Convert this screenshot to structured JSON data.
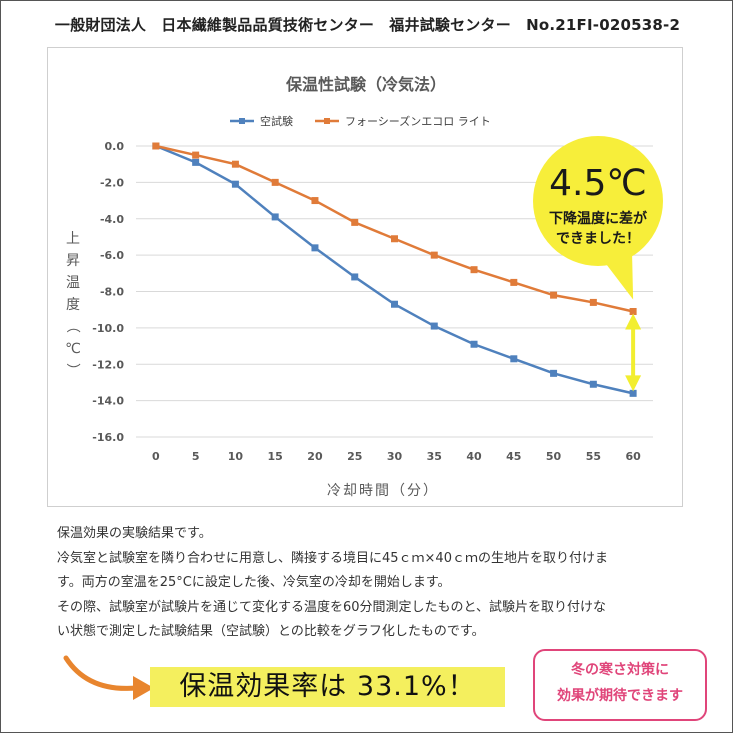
{
  "header": {
    "text": "一般財団法人　日本繊維製品品質技術センター　福井試験センター　No.21FI-020538-2"
  },
  "chart_data": {
    "type": "line",
    "title": "保温性試験（冷気法）",
    "xlabel": "冷却時間（分）",
    "ylabel": [
      "上",
      "昇",
      "温",
      "度",
      "（",
      "℃",
      "）"
    ],
    "x": [
      0,
      5,
      10,
      15,
      20,
      25,
      30,
      35,
      40,
      45,
      50,
      55,
      60
    ],
    "ylim": [
      -16,
      0
    ],
    "yticks": [
      "0.0",
      "-2.0",
      "-4.0",
      "-6.0",
      "-8.0",
      "-10.0",
      "-12.0",
      "-14.0",
      "-16.0"
    ],
    "ytick_values": [
      0,
      -2,
      -4,
      -6,
      -8,
      -10,
      -12,
      -14,
      -16
    ],
    "grid": true,
    "legend_position": "top",
    "series": [
      {
        "name": "空試験",
        "color": "#4f81bd",
        "values": [
          0,
          -0.9,
          -2.1,
          -3.9,
          -5.6,
          -7.2,
          -8.7,
          -9.9,
          -10.9,
          -11.7,
          -12.5,
          -13.1,
          -13.6
        ]
      },
      {
        "name": "フォーシーズンエコロ ライト",
        "color": "#e07b39",
        "values": [
          0,
          -0.5,
          -1.0,
          -2.0,
          -3.0,
          -4.2,
          -5.1,
          -6.0,
          -6.8,
          -7.5,
          -8.2,
          -8.6,
          -9.1
        ]
      }
    ],
    "annotation": {
      "big": "4.5℃",
      "line1": "下降温度に差が",
      "line2": "できました！",
      "bubble_color": "#f7ee3a",
      "arrow_color": "#f2ee2f"
    }
  },
  "description": [
    "保温効果の実験結果です。",
    "冷気室と試験室を隣り合わせに用意し、隣接する境目に45ｃｍ×40ｃｍの生地片を取り付けま",
    "す。両方の室温を25°Cに設定した後、冷気室の冷却を開始します。",
    "その際、試験室が試験片を通じて変化する温度を60分間測定したものと、試験片を取り付けな",
    "い状態で測定した試験結果（空試験）との比較をグラフ化したものです。"
  ],
  "efficiency": {
    "text": "保温効果率は 33.1%！",
    "highlight": "#f4ef5e",
    "arrow_color": "#e8852e"
  },
  "callout": {
    "line1": "冬の寒さ対策に",
    "line2": "効果が期待できます",
    "color": "#e0457a"
  }
}
